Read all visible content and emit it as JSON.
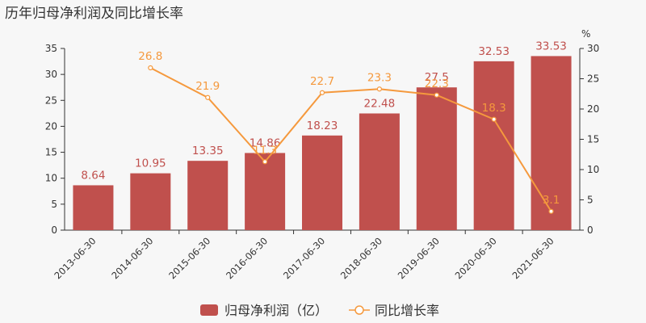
{
  "title": "历年归母净利润及同比增长率",
  "chart_data": {
    "type": "bar+line",
    "categories": [
      "2013-06-30",
      "2014-06-30",
      "2015-06-30",
      "2016-06-30",
      "2017-06-30",
      "2018-06-30",
      "2019-06-30",
      "2020-06-30",
      "2021-06-30"
    ],
    "series": [
      {
        "name": "归母净利润（亿）",
        "type": "bar",
        "axis": "left",
        "values": [
          8.64,
          10.95,
          13.35,
          14.86,
          18.23,
          22.48,
          27.5,
          32.53,
          33.53
        ],
        "labels": [
          "8.64",
          "10.95",
          "13.35",
          "14.86",
          "18.23",
          "22.48",
          "27.5",
          "32.53",
          "33.53"
        ],
        "color": "#c0504d"
      },
      {
        "name": "同比增长率",
        "type": "line",
        "axis": "right",
        "values": [
          null,
          26.8,
          21.9,
          11.3,
          22.7,
          23.3,
          22.3,
          18.3,
          3.1
        ],
        "labels": [
          "",
          "26.8",
          "21.9",
          "11.3",
          "22.7",
          "23.3",
          "22.3",
          "18.3",
          "3.1"
        ],
        "color": "#f5993d"
      }
    ],
    "y_left": {
      "min": 0,
      "max": 35,
      "ticks": [
        0,
        5,
        10,
        15,
        20,
        25,
        30,
        35
      ]
    },
    "y_right": {
      "min": 0,
      "max": 30,
      "ticks": [
        0,
        5,
        10,
        15,
        20,
        25,
        30
      ],
      "unit": "%"
    },
    "legend_position": "bottom-center"
  }
}
